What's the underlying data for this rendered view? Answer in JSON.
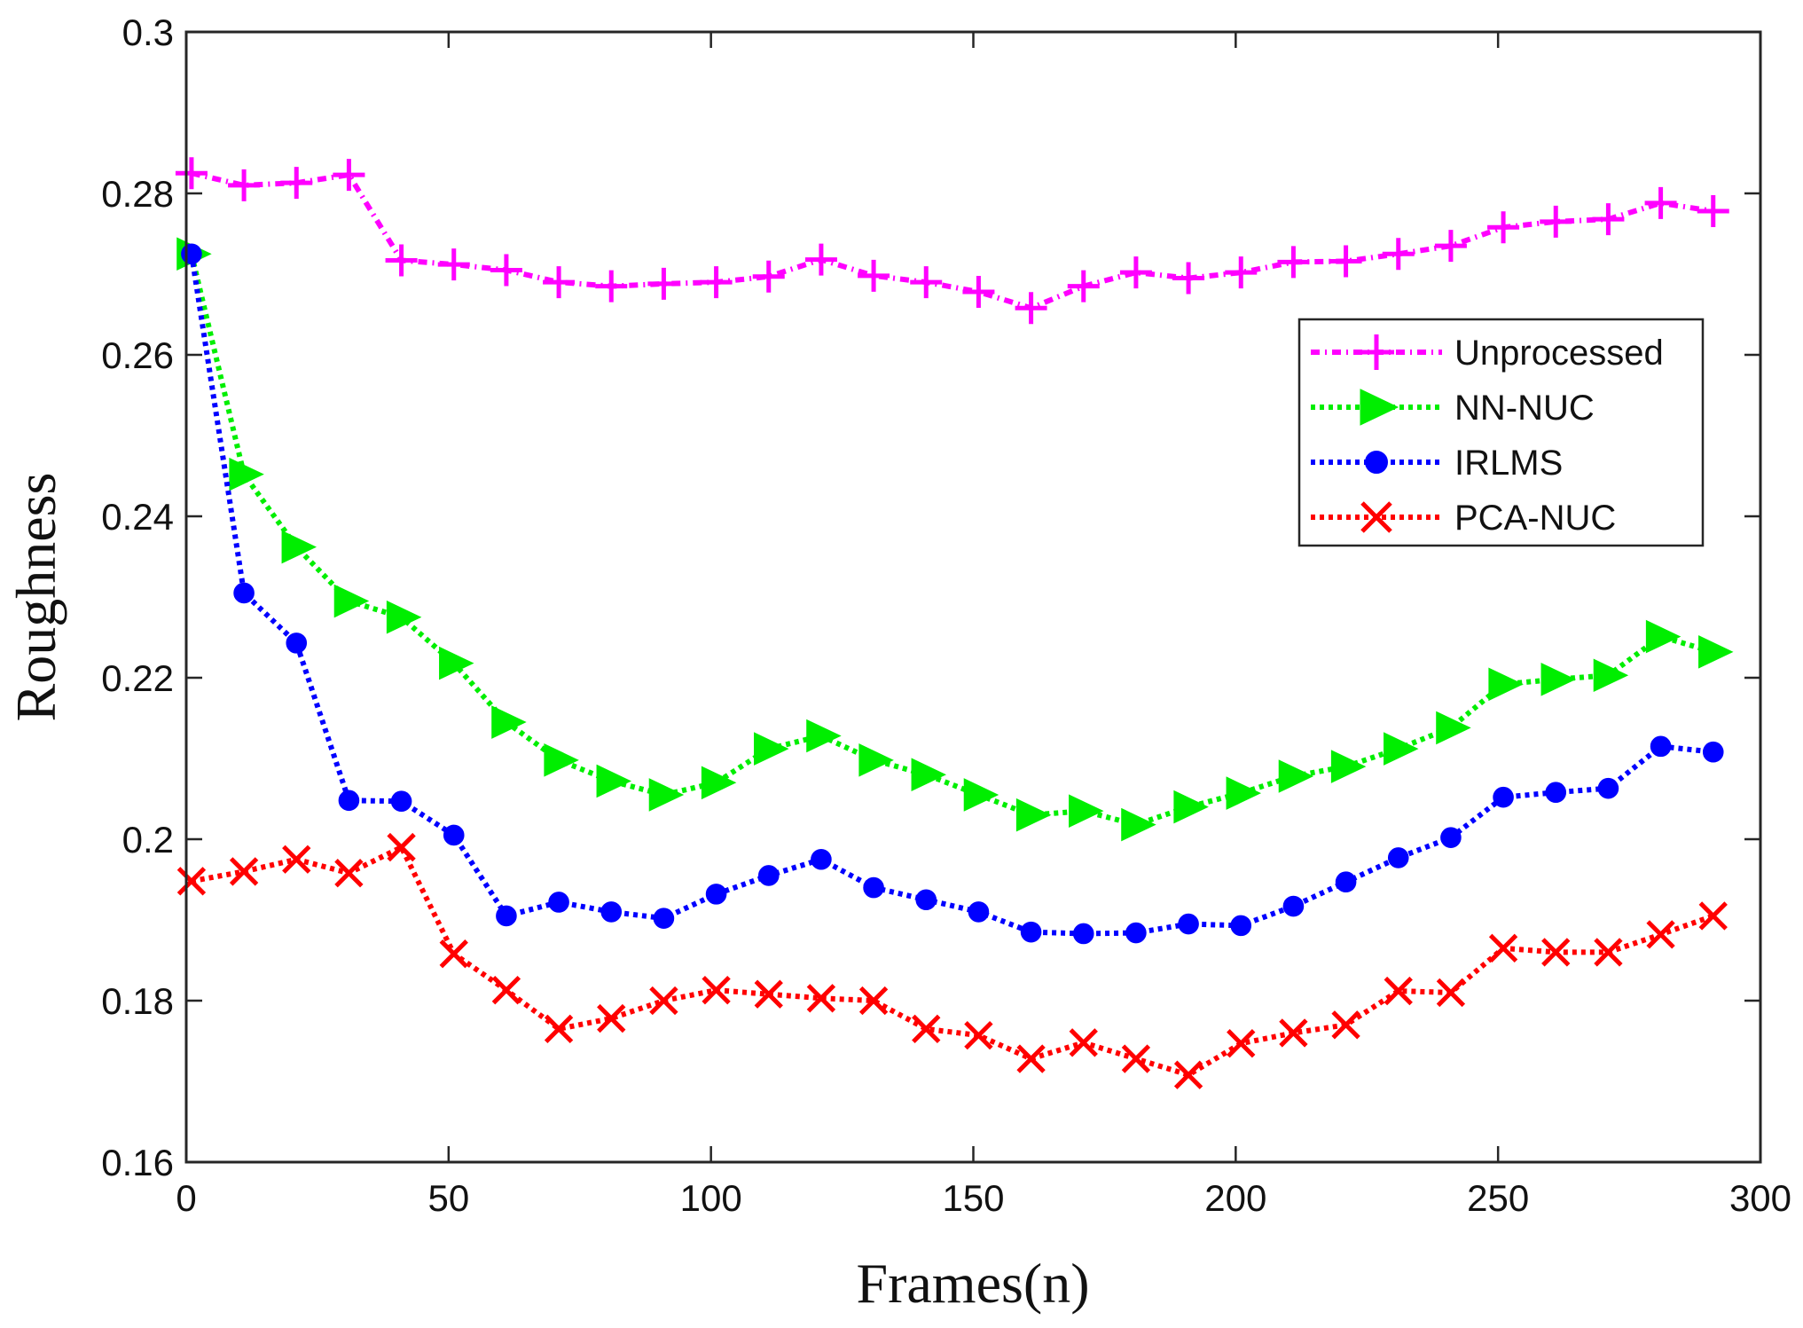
{
  "chart_data": {
    "type": "line",
    "title": "",
    "xlabel": "Frames(n)",
    "ylabel": "Roughness",
    "xlim": [
      0,
      300
    ],
    "ylim": [
      0.16,
      0.3
    ],
    "xticks": [
      0,
      50,
      100,
      150,
      200,
      250,
      300
    ],
    "xtick_labels": [
      "0",
      "50",
      "100",
      "150",
      "200",
      "250",
      "300"
    ],
    "yticks": [
      0.16,
      0.18,
      0.2,
      0.22,
      0.24,
      0.26,
      0.28,
      0.3
    ],
    "ytick_labels": [
      "0.16",
      "0.18",
      "0.2",
      "0.22",
      "0.24",
      "0.26",
      "0.28",
      "0.3"
    ],
    "grid": false,
    "legend_position": "right",
    "x": [
      1,
      11,
      21,
      31,
      41,
      51,
      61,
      71,
      81,
      91,
      101,
      111,
      121,
      131,
      141,
      151,
      161,
      171,
      181,
      191,
      201,
      211,
      221,
      231,
      241,
      251,
      261,
      271,
      281,
      291
    ],
    "series": [
      {
        "name": "Unprocessed",
        "color": "#ff00ff",
        "marker": "plus",
        "line_style": "dashdot",
        "values": [
          0.2825,
          0.281,
          0.2813,
          0.2823,
          0.2717,
          0.2712,
          0.2705,
          0.269,
          0.2685,
          0.2688,
          0.269,
          0.2697,
          0.2718,
          0.2698,
          0.269,
          0.2678,
          0.2658,
          0.2685,
          0.2702,
          0.2695,
          0.2702,
          0.2715,
          0.2716,
          0.2725,
          0.2735,
          0.2758,
          0.2765,
          0.2768,
          0.2788,
          0.2778
        ]
      },
      {
        "name": "NN-NUC",
        "color": "#00ee00",
        "marker": "triangle-right",
        "line_style": "dotted",
        "values": [
          0.2725,
          0.2452,
          0.2362,
          0.2295,
          0.2275,
          0.2218,
          0.2145,
          0.2098,
          0.2072,
          0.2055,
          0.207,
          0.2112,
          0.2128,
          0.2098,
          0.208,
          0.2055,
          0.203,
          0.2035,
          0.2018,
          0.204,
          0.2057,
          0.2078,
          0.209,
          0.2112,
          0.2138,
          0.2192,
          0.2198,
          0.2203,
          0.2251,
          0.2232
        ]
      },
      {
        "name": "IRLMS",
        "color": "#0000ff",
        "marker": "circle",
        "line_style": "dotted",
        "values": [
          0.2725,
          0.2305,
          0.2243,
          0.2048,
          0.2047,
          0.2005,
          0.1905,
          0.1922,
          0.191,
          0.1902,
          0.1932,
          0.1955,
          0.1975,
          0.194,
          0.1925,
          0.191,
          0.1885,
          0.1883,
          0.1884,
          0.1895,
          0.1893,
          0.1917,
          0.1947,
          0.1977,
          0.2002,
          0.2052,
          0.2058,
          0.2063,
          0.2115,
          0.2108
        ]
      },
      {
        "name": "PCA-NUC",
        "color": "#ff0000",
        "marker": "x",
        "line_style": "dotted",
        "values": [
          0.1948,
          0.196,
          0.1975,
          0.1958,
          0.199,
          0.1858,
          0.1813,
          0.1765,
          0.1778,
          0.18,
          0.1813,
          0.1808,
          0.1803,
          0.18,
          0.1765,
          0.1757,
          0.1728,
          0.1748,
          0.1728,
          0.1708,
          0.1747,
          0.176,
          0.177,
          0.1812,
          0.181,
          0.1865,
          0.186,
          0.186,
          0.1882,
          0.1905
        ]
      }
    ]
  }
}
